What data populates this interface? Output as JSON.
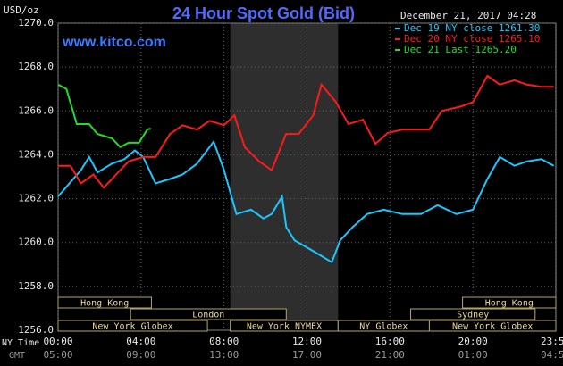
{
  "chart_data": {
    "type": "line",
    "title": "24 Hour Spot Gold (Bid)",
    "ylabel": "USD/oz",
    "date": "December 21, 2017 04:28",
    "watermark": "www.kitco.com",
    "x_row_label": "NY Time",
    "x2_row_label": "GMT",
    "ylim": [
      1256,
      1270
    ],
    "yticks": [
      {
        "value": 1256,
        "label": "1256.0"
      },
      {
        "value": 1258,
        "label": "1258.0"
      },
      {
        "value": 1260,
        "label": "1260.0"
      },
      {
        "value": 1262,
        "label": "1262.0"
      },
      {
        "value": 1264,
        "label": "1264.0"
      },
      {
        "value": 1266,
        "label": "1266.0"
      },
      {
        "value": 1268,
        "label": "1268.0"
      },
      {
        "value": 1270,
        "label": "1270.0"
      }
    ],
    "xlim": [
      0,
      24
    ],
    "xticks": [
      {
        "value": 0,
        "label": "00:00"
      },
      {
        "value": 4,
        "label": "04:00"
      },
      {
        "value": 8,
        "label": "08:00"
      },
      {
        "value": 12,
        "label": "12:00"
      },
      {
        "value": 16,
        "label": "16:00"
      },
      {
        "value": 20,
        "label": "20:00"
      },
      {
        "value": 23.98,
        "label": "23:59"
      }
    ],
    "x2_labels": [
      "05:00",
      "09:00",
      "13:00",
      "17:00",
      "21:00",
      "01:00",
      "04:59"
    ],
    "grid": true,
    "shade_range": [
      8.3,
      13.5
    ],
    "sessions": [
      {
        "label": "Hong Kong",
        "start": 0,
        "end": 4.5
      },
      {
        "label": "Hong Kong",
        "start": 19.5,
        "end": 24
      },
      {
        "label": "London",
        "start": 3.5,
        "end": 11.0
      },
      {
        "label": "Sydney",
        "start": 17.0,
        "end": 23.0
      },
      {
        "label": "New York Globex",
        "start": 0,
        "end": 7.2
      },
      {
        "label": "New York NYMEX",
        "start": 8.3,
        "end": 13.5
      },
      {
        "label": "NY Globex",
        "start": 13.5,
        "end": 17.9
      },
      {
        "label": "New York Globex",
        "start": 17.9,
        "end": 24
      }
    ],
    "series": [
      {
        "name": "Dec 19 NY close 1261.30",
        "color": "#19c8ff",
        "x": [
          0,
          1.1,
          1.5,
          1.9,
          2.6,
          3.2,
          3.7,
          4.1,
          4.7,
          5.4,
          6.0,
          6.7,
          7.5,
          8.0,
          8.3,
          8.6,
          9.3,
          9.9,
          10.3,
          10.8,
          11.0,
          11.4,
          12.5,
          13.2,
          13.6,
          14.2,
          14.9,
          15.7,
          16.6,
          17.5,
          18.3,
          19.2,
          20.0,
          20.7,
          21.3,
          22.0,
          22.6,
          23.3,
          23.9
        ],
        "values": [
          1262.1,
          1263.3,
          1263.9,
          1263.2,
          1263.6,
          1263.8,
          1264.2,
          1263.9,
          1262.7,
          1262.9,
          1263.1,
          1263.6,
          1264.6,
          1263.3,
          1262.3,
          1261.3,
          1261.5,
          1261.1,
          1261.3,
          1262.1,
          1260.7,
          1260.1,
          1259.5,
          1259.1,
          1260.1,
          1260.7,
          1261.3,
          1261.5,
          1261.3,
          1261.3,
          1261.7,
          1261.3,
          1261.5,
          1262.9,
          1263.9,
          1263.5,
          1263.7,
          1263.8,
          1263.5
        ]
      },
      {
        "name": "Dec 20 NY close 1265.10",
        "color": "#ff1a1a",
        "x": [
          0,
          0.6,
          1.1,
          1.7,
          2.2,
          2.8,
          3.4,
          4.1,
          4.7,
          5.4,
          6.0,
          6.7,
          7.3,
          8.0,
          8.5,
          9.0,
          9.7,
          10.3,
          10.99,
          11.6,
          12.3,
          12.7,
          13.4,
          14.0,
          14.7,
          15.3,
          15.9,
          16.6,
          17.2,
          17.9,
          18.5,
          19.4,
          20.0,
          20.7,
          21.3,
          22.0,
          22.6,
          23.3,
          23.9
        ],
        "values": [
          1263.5,
          1263.5,
          1262.7,
          1263.1,
          1262.5,
          1263.1,
          1263.7,
          1263.9,
          1263.9,
          1264.95,
          1265.35,
          1265.15,
          1265.55,
          1265.35,
          1265.8,
          1264.35,
          1263.7,
          1263.3,
          1264.95,
          1264.95,
          1265.8,
          1267.2,
          1266.4,
          1265.4,
          1265.6,
          1264.5,
          1265.0,
          1265.15,
          1265.15,
          1265.15,
          1266.0,
          1266.2,
          1266.4,
          1267.6,
          1267.2,
          1267.4,
          1267.2,
          1267.1,
          1267.1
        ]
      },
      {
        "name": "Dec 21 Last 1265.20",
        "color": "#22dd22",
        "x": [
          0,
          0.4,
          0.9,
          1.5,
          1.9,
          2.6,
          3.0,
          3.4,
          3.9,
          4.3,
          4.47
        ],
        "values": [
          1267.2,
          1267.0,
          1265.4,
          1265.4,
          1264.95,
          1264.75,
          1264.35,
          1264.55,
          1264.55,
          1265.15,
          1265.2
        ]
      }
    ]
  }
}
